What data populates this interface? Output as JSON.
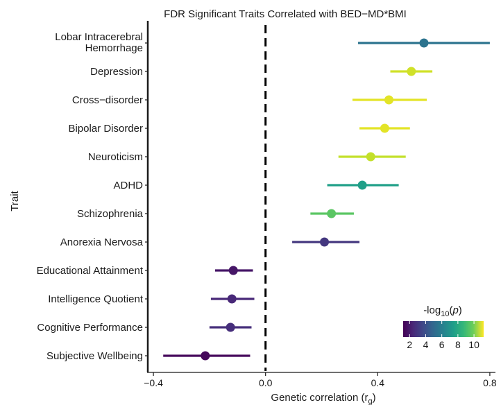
{
  "chart_data": {
    "type": "forest",
    "title": "FDR Significant Traits Correlated with BED−MD*BMI",
    "xlabel": "Genetic correlation (r",
    "xlabel_sub": "g",
    "xlabel_close": ")",
    "ylabel": "Trait",
    "xlim": [
      -0.42,
      0.82
    ],
    "xticks": [
      "−0.4",
      "0.0",
      "0.4",
      "0.8"
    ],
    "reference_line": 0,
    "traits": [
      {
        "label": "Lobar Intracerebral\nHemorrhage",
        "estimate": 0.565,
        "lower": 0.33,
        "upper": 0.8,
        "neglog10p": 5.0
      },
      {
        "label": "Depression",
        "estimate": 0.52,
        "lower": 0.445,
        "upper": 0.595,
        "neglog10p": 10.5
      },
      {
        "label": "Cross−disorder",
        "estimate": 0.44,
        "lower": 0.31,
        "upper": 0.575,
        "neglog10p": 10.8
      },
      {
        "label": "Bipolar Disorder",
        "estimate": 0.425,
        "lower": 0.335,
        "upper": 0.515,
        "neglog10p": 10.8
      },
      {
        "label": "Neuroticism",
        "estimate": 0.375,
        "lower": 0.26,
        "upper": 0.5,
        "neglog10p": 10.3
      },
      {
        "label": "ADHD",
        "estimate": 0.345,
        "lower": 0.22,
        "upper": 0.475,
        "neglog10p": 6.8
      },
      {
        "label": "Schizophrenia",
        "estimate": 0.235,
        "lower": 0.16,
        "upper": 0.315,
        "neglog10p": 8.6
      },
      {
        "label": "Anorexia Nervosa",
        "estimate": 0.21,
        "lower": 0.095,
        "upper": 0.335,
        "neglog10p": 2.8
      },
      {
        "label": "Educational Attainment",
        "estimate": -0.115,
        "lower": -0.18,
        "upper": -0.045,
        "neglog10p": 1.8
      },
      {
        "label": "Intelligence Quotient",
        "estimate": -0.12,
        "lower": -0.195,
        "upper": -0.04,
        "neglog10p": 2.3
      },
      {
        "label": "Cognitive Performance",
        "estimate": -0.125,
        "lower": -0.2,
        "upper": -0.05,
        "neglog10p": 2.5
      },
      {
        "label": "Subjective Wellbeing",
        "estimate": -0.215,
        "lower": -0.365,
        "upper": -0.055,
        "neglog10p": 1.4
      }
    ],
    "legend": {
      "title_prefix": "-log",
      "title_sub": "10",
      "title_suffix": "(p)",
      "ticks": [
        "2",
        "4",
        "6",
        "8",
        "10"
      ],
      "range": [
        1.2,
        11.2
      ],
      "placement": "bottom-right",
      "palette": "viridis"
    }
  }
}
